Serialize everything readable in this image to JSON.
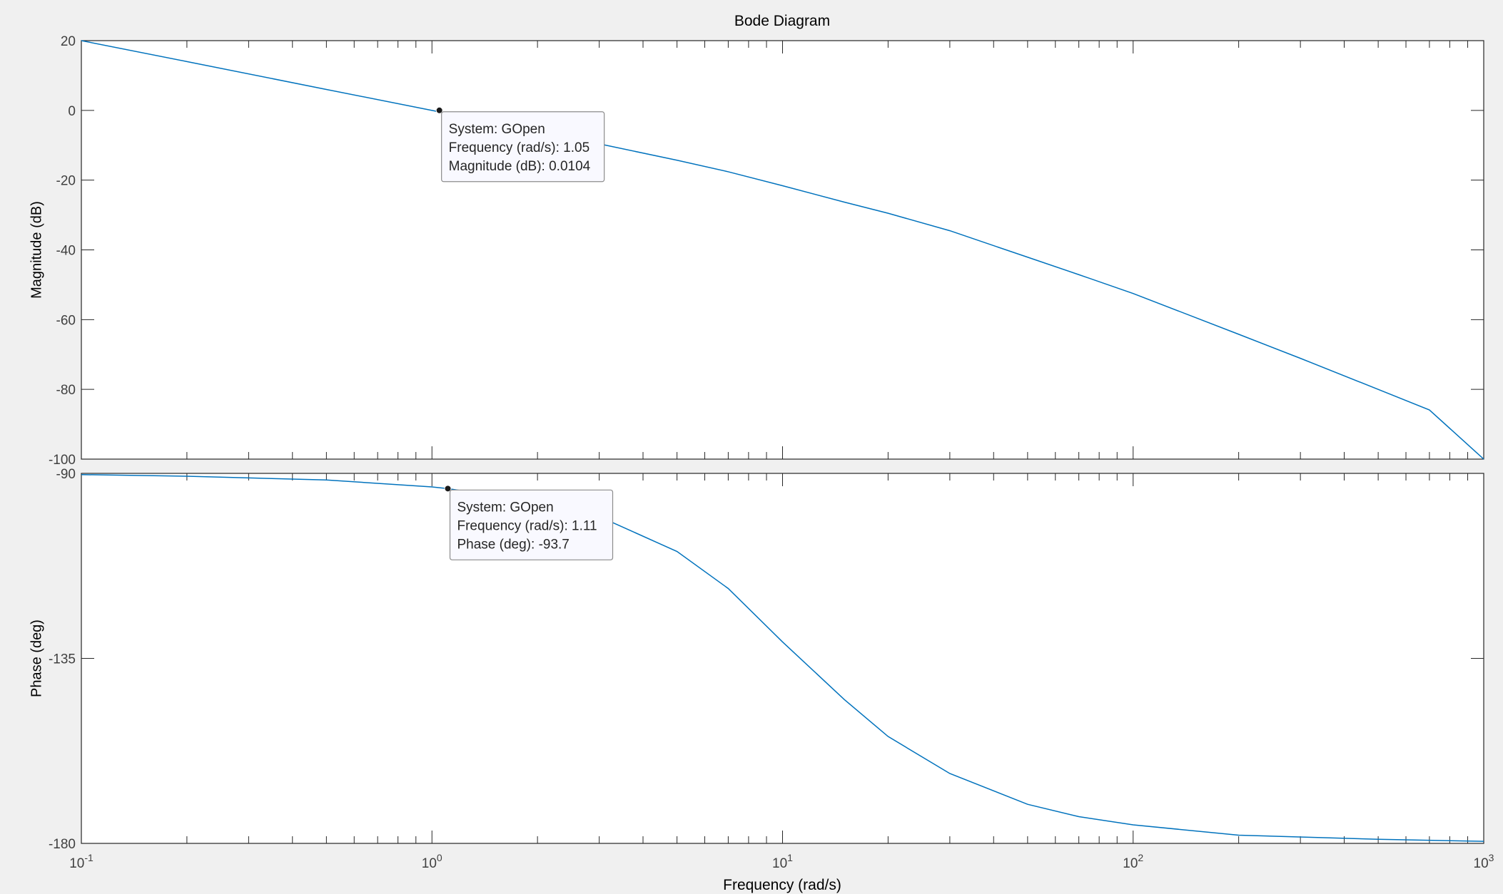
{
  "window": {
    "title": "Bode Diagram"
  },
  "colors": {
    "figure_bg": "#f0f0f0",
    "axes_bg": "#ffffff",
    "axis": "#262626",
    "grid_tick": "#262626",
    "tick_label": "#404040",
    "line": "#0072bd",
    "datatip_bg": "#f9f9ff",
    "datatip_border": "#8c8c8c",
    "marker": "#1a1a1a"
  },
  "chart_data": [
    {
      "type": "line",
      "panel": "magnitude",
      "title": "Bode Diagram",
      "xlabel": "Frequency  (rad/s)",
      "ylabel": "Magnitude (dB)",
      "xscale": "log",
      "xlim": [
        0.1,
        1000
      ],
      "ylim": [
        -100,
        20
      ],
      "yticks": [
        20,
        0,
        -20,
        -40,
        -60,
        -80,
        -100
      ],
      "ytick_labels": [
        "20",
        "0",
        "-20",
        "-40",
        "-60",
        "-80",
        "-100"
      ],
      "grid": false,
      "series": [
        {
          "x": [
            0.1,
            0.2,
            0.5,
            1,
            2,
            3,
            5,
            7,
            10,
            15,
            20,
            30,
            50,
            70,
            100,
            200,
            300,
            500,
            700,
            1000
          ],
          "y": [
            20,
            14,
            6,
            0,
            -6,
            -9.6,
            -14.3,
            -17.6,
            -21.6,
            -26.3,
            -29.5,
            -34.5,
            -42.1,
            -47.1,
            -52.5,
            -64.2,
            -71.1,
            -80.0,
            -85.9,
            -100
          ]
        }
      ],
      "datatip": {
        "x": 1.05,
        "y": 0.0104,
        "lines": [
          "System: GOpen",
          "Frequency (rad/s): 1.05",
          "Magnitude (dB): 0.0104"
        ]
      }
    },
    {
      "type": "line",
      "panel": "phase",
      "xlabel": "Frequency  (rad/s)",
      "ylabel": "Phase (deg)",
      "xscale": "log",
      "xlim": [
        0.1,
        1000
      ],
      "ylim": [
        -180,
        -90
      ],
      "yticks": [
        -90,
        -135,
        -180
      ],
      "ytick_labels": [
        "-90",
        "-135",
        "-180"
      ],
      "xticks": [
        0.1,
        1,
        10,
        100,
        1000
      ],
      "xtick_labels": [
        {
          "base": "10",
          "exp": "-1"
        },
        {
          "base": "10",
          "exp": "0"
        },
        {
          "base": "10",
          "exp": "1"
        },
        {
          "base": "10",
          "exp": "2"
        },
        {
          "base": "10",
          "exp": "3"
        }
      ],
      "grid": false,
      "series": [
        {
          "x": [
            0.1,
            0.2,
            0.5,
            1,
            1.11,
            2,
            3,
            5,
            7,
            10,
            15,
            20,
            30,
            50,
            70,
            100,
            200,
            500,
            1000
          ],
          "y": [
            -90.3,
            -90.7,
            -91.6,
            -93.3,
            -93.7,
            -97,
            -100.5,
            -109,
            -118,
            -131,
            -145,
            -154,
            -163,
            -170.5,
            -173.5,
            -175.5,
            -178,
            -179,
            -179.5
          ]
        }
      ],
      "datatip": {
        "x": 1.11,
        "y": -93.7,
        "lines": [
          "System: GOpen",
          "Frequency (rad/s): 1.11",
          "Phase (deg): -93.7"
        ]
      }
    }
  ]
}
